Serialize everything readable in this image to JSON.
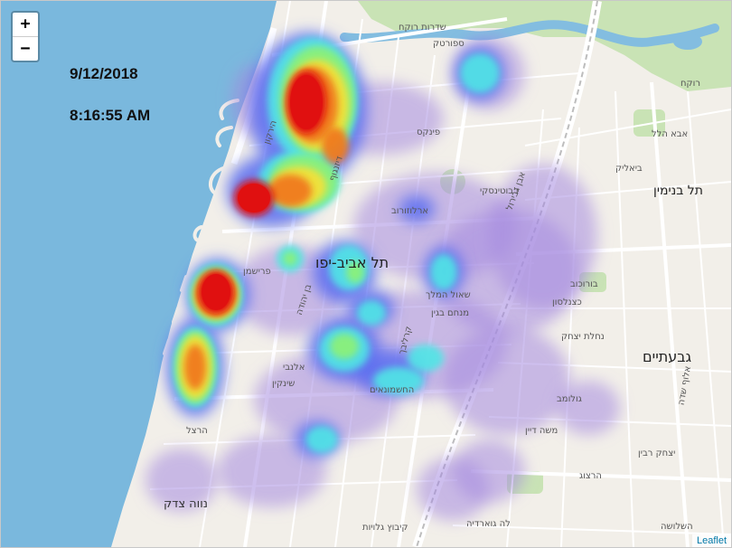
{
  "map": {
    "zoom_in_label": "+",
    "zoom_out_label": "−",
    "date": "9/12/2018",
    "time": "8:16:55 AM",
    "attribution": "Leaflet",
    "colors": {
      "sea": "#7ab8dd",
      "land": "#f2efe9",
      "park": "#c9e3b5",
      "river": "#83bde0",
      "road_major": "#ffffff",
      "rail": "#bdbdbd",
      "heat_purple": "#a58be0",
      "heat_blue": "#5a6cf0",
      "heat_cyan": "#4fe6e6",
      "heat_green": "#8af07a",
      "heat_yellow": "#f2e23a",
      "heat_orange": "#f07a1a",
      "heat_red": "#e01010"
    },
    "labels": {
      "city": "תל אביב-יפו",
      "givatayim": "גבעתיים",
      "tel_binyamin": "תל בנימין",
      "neve_tzedek": "נווה צדק",
      "rokah_blvd": "שדרות רוקח",
      "sportek": "ספורטק",
      "rokah": "רוקח",
      "ibn_gvirol": "אבן גבירול",
      "pinkas": "פינקס",
      "arlozorov": "ארלוזורוב",
      "jabotinsky": "ז'בוטינסקי",
      "frishman": "פרישמן",
      "shaul_hamelech": "שאול המלך",
      "menachem_begin": "מנחם בגין",
      "carlebach": "קרליבך",
      "hashmonaim": "החשמונאים",
      "katznelson": "כצנלסון",
      "borochov": "בורוכוב",
      "sheinkin": "שינקין",
      "allenby": "אלנבי",
      "hayarkon": "הירקון",
      "dizengoff": "דיזנגוף",
      "herzl": "הרצל",
      "moshe_dayan": "משה דיין",
      "yitzhak_rabin": "יצחק רבין",
      "hashlosha": "השלושה",
      "golomb": "גולומב",
      "herzog": "הרצוג",
      "halamed_he": "לה גוארדיה",
      "nahalat_yitzhak": "נחלת יצחק",
      "aluf_sadeh": "אלוף שדה",
      "bialik": "ביאליק",
      "ben_yehuda": "בן יהודה",
      "kibbutz_galuyot": "קיבוץ גלויות",
      "abba_hillel": "אבא הלל"
    }
  }
}
